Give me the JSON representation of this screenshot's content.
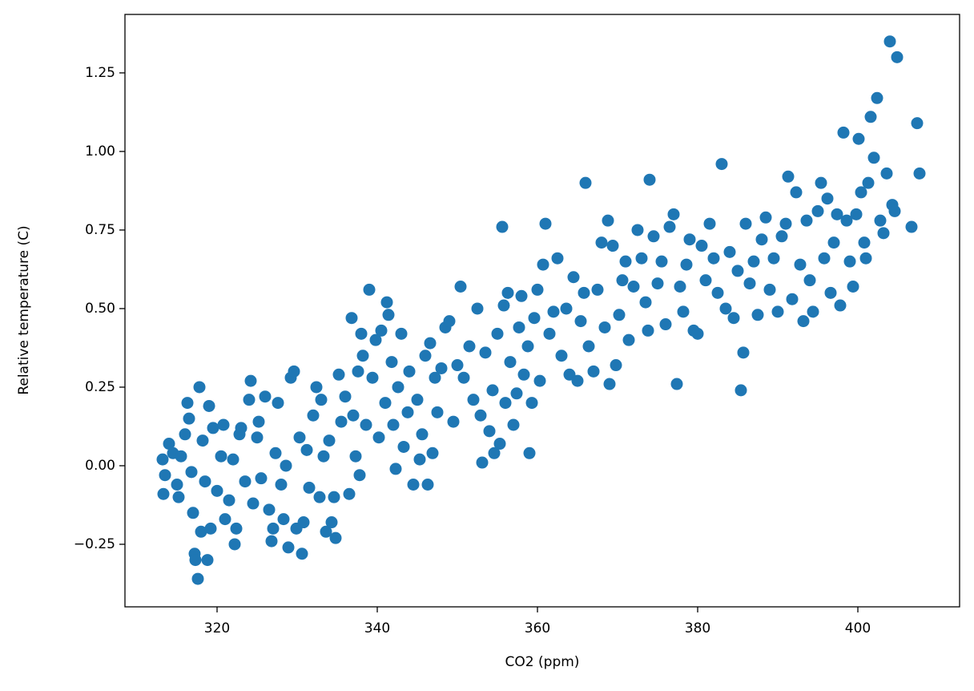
{
  "chart_data": {
    "type": "scatter",
    "xlabel": "CO2 (ppm)",
    "ylabel": "Relative temperature (C)",
    "color": "#1f77b4",
    "xlim": [
      308.5,
      412.7
    ],
    "ylim": [
      -0.449,
      1.436
    ],
    "xticks": [
      320,
      340,
      360,
      380,
      400
    ],
    "yticks": [
      {
        "value": -0.25,
        "label": "−0.25"
      },
      {
        "value": 0,
        "label": "0.00"
      },
      0.25,
      {
        "value": 0.5,
        "label": "0.50"
      },
      0.75,
      {
        "value": 1,
        "label": "1.00"
      },
      1.25
    ],
    "x": [
      313.2,
      313.5,
      313.3,
      314,
      314.5,
      315,
      315.2,
      315.5,
      316,
      316.3,
      316.5,
      316.8,
      317,
      317.2,
      317.3,
      317.6,
      317.8,
      318,
      318.2,
      318.5,
      318.8,
      319,
      319.2,
      319.5,
      320,
      320.5,
      320.8,
      321,
      321.5,
      322,
      322.2,
      322.4,
      322.8,
      323,
      323.5,
      324,
      324.2,
      324.5,
      325,
      325.2,
      325.5,
      326,
      326.5,
      326.8,
      327,
      327.3,
      327.6,
      328,
      328.3,
      328.6,
      328.9,
      329.2,
      329.6,
      329.9,
      330.3,
      330.6,
      330.8,
      331.2,
      331.5,
      332,
      332.4,
      332.8,
      333,
      333.3,
      333.6,
      334,
      334.3,
      334.6,
      334.8,
      335.2,
      335.5,
      336,
      336.5,
      336.8,
      337,
      337.3,
      337.6,
      337.8,
      338,
      338.2,
      338.6,
      339,
      339.4,
      339.8,
      340.2,
      340.5,
      341,
      341.2,
      341.4,
      341.8,
      342,
      342.3,
      342.6,
      343,
      343.3,
      343.8,
      344,
      344.5,
      345,
      345.3,
      345.6,
      346,
      346.3,
      346.6,
      346.9,
      347.2,
      347.5,
      348,
      348.5,
      349,
      349.5,
      350,
      350.4,
      350.8,
      351.5,
      352,
      352.5,
      352.9,
      353.1,
      353.5,
      354,
      354.4,
      354.6,
      355,
      355.3,
      355.6,
      355.8,
      356,
      356.3,
      356.6,
      357,
      357.4,
      357.7,
      358,
      358.3,
      358.8,
      359,
      359.3,
      359.6,
      360,
      360.3,
      360.7,
      361,
      361.5,
      362,
      362.5,
      363,
      363.6,
      364,
      364.5,
      365,
      365.4,
      365.8,
      366,
      366.4,
      367,
      367.5,
      368,
      368.4,
      368.8,
      369,
      369.4,
      369.8,
      370.2,
      370.6,
      371,
      371.4,
      372,
      372.5,
      373,
      373.5,
      373.8,
      374,
      374.5,
      375,
      375.5,
      376,
      376.5,
      377,
      377.4,
      377.8,
      378.2,
      378.6,
      379,
      379.5,
      380,
      380.5,
      381,
      381.5,
      382,
      382.5,
      383,
      383.5,
      384,
      384.5,
      385,
      385.4,
      385.7,
      386,
      386.5,
      387,
      387.5,
      388,
      388.5,
      389,
      389.5,
      390,
      390.5,
      391,
      391.3,
      391.8,
      392.3,
      392.8,
      393.2,
      393.6,
      394,
      394.4,
      395,
      395.4,
      395.8,
      396.2,
      396.6,
      397,
      397.4,
      397.8,
      398.2,
      398.6,
      399,
      399.4,
      399.8,
      400.1,
      400.4,
      400.8,
      401,
      401.3,
      401.6,
      402,
      402.4,
      402.8,
      403.2,
      403.6,
      404,
      404.3,
      404.6,
      404.9,
      406.7,
      407.4,
      407.7
    ],
    "values": [
      0.02,
      -0.03,
      -0.09,
      0.07,
      0.04,
      -0.06,
      -0.1,
      0.03,
      0.1,
      0.2,
      0.15,
      -0.02,
      -0.15,
      -0.28,
      -0.3,
      -0.36,
      0.25,
      -0.21,
      0.08,
      -0.05,
      -0.3,
      0.19,
      -0.2,
      0.12,
      -0.08,
      0.03,
      0.13,
      -0.17,
      -0.11,
      0.02,
      -0.25,
      -0.2,
      0.1,
      0.12,
      -0.05,
      0.21,
      0.27,
      -0.12,
      0.09,
      0.14,
      -0.04,
      0.22,
      -0.14,
      -0.24,
      -0.2,
      0.04,
      0.2,
      -0.06,
      -0.17,
      0.0,
      -0.26,
      0.28,
      0.3,
      -0.2,
      0.09,
      -0.28,
      -0.18,
      0.05,
      -0.07,
      0.16,
      0.25,
      -0.1,
      0.21,
      0.03,
      -0.21,
      0.08,
      -0.18,
      -0.1,
      -0.23,
      0.29,
      0.14,
      0.22,
      -0.09,
      0.47,
      0.16,
      0.03,
      0.3,
      -0.03,
      0.42,
      0.35,
      0.13,
      0.56,
      0.28,
      0.4,
      0.09,
      0.43,
      0.2,
      0.52,
      0.48,
      0.33,
      0.13,
      -0.01,
      0.25,
      0.42,
      0.06,
      0.17,
      0.3,
      -0.06,
      0.21,
      0.02,
      0.1,
      0.35,
      -0.06,
      0.39,
      0.04,
      0.28,
      0.17,
      0.31,
      0.44,
      0.46,
      0.14,
      0.32,
      0.57,
      0.28,
      0.38,
      0.21,
      0.5,
      0.16,
      0.01,
      0.36,
      0.11,
      0.24,
      0.04,
      0.42,
      0.07,
      0.76,
      0.51,
      0.2,
      0.55,
      0.33,
      0.13,
      0.23,
      0.44,
      0.54,
      0.29,
      0.38,
      0.04,
      0.2,
      0.47,
      0.56,
      0.27,
      0.64,
      0.77,
      0.42,
      0.49,
      0.66,
      0.35,
      0.5,
      0.29,
      0.6,
      0.27,
      0.46,
      0.55,
      0.9,
      0.38,
      0.3,
      0.56,
      0.71,
      0.44,
      0.78,
      0.26,
      0.7,
      0.32,
      0.48,
      0.59,
      0.65,
      0.4,
      0.57,
      0.75,
      0.66,
      0.52,
      0.43,
      0.91,
      0.73,
      0.58,
      0.65,
      0.45,
      0.76,
      0.8,
      0.26,
      0.57,
      0.49,
      0.64,
      0.72,
      0.43,
      0.42,
      0.7,
      0.59,
      0.77,
      0.66,
      0.55,
      0.96,
      0.5,
      0.68,
      0.47,
      0.62,
      0.24,
      0.36,
      0.77,
      0.58,
      0.65,
      0.48,
      0.72,
      0.79,
      0.56,
      0.66,
      0.49,
      0.73,
      0.77,
      0.92,
      0.53,
      0.87,
      0.64,
      0.46,
      0.78,
      0.59,
      0.49,
      0.81,
      0.9,
      0.66,
      0.85,
      0.55,
      0.71,
      0.8,
      0.51,
      1.06,
      0.78,
      0.65,
      0.57,
      0.8,
      1.04,
      0.87,
      0.71,
      0.66,
      0.9,
      1.11,
      0.98,
      1.17,
      0.78,
      0.74,
      0.93,
      1.35,
      0.83,
      0.81,
      1.3,
      0.76,
      1.09,
      0.93
    ]
  }
}
